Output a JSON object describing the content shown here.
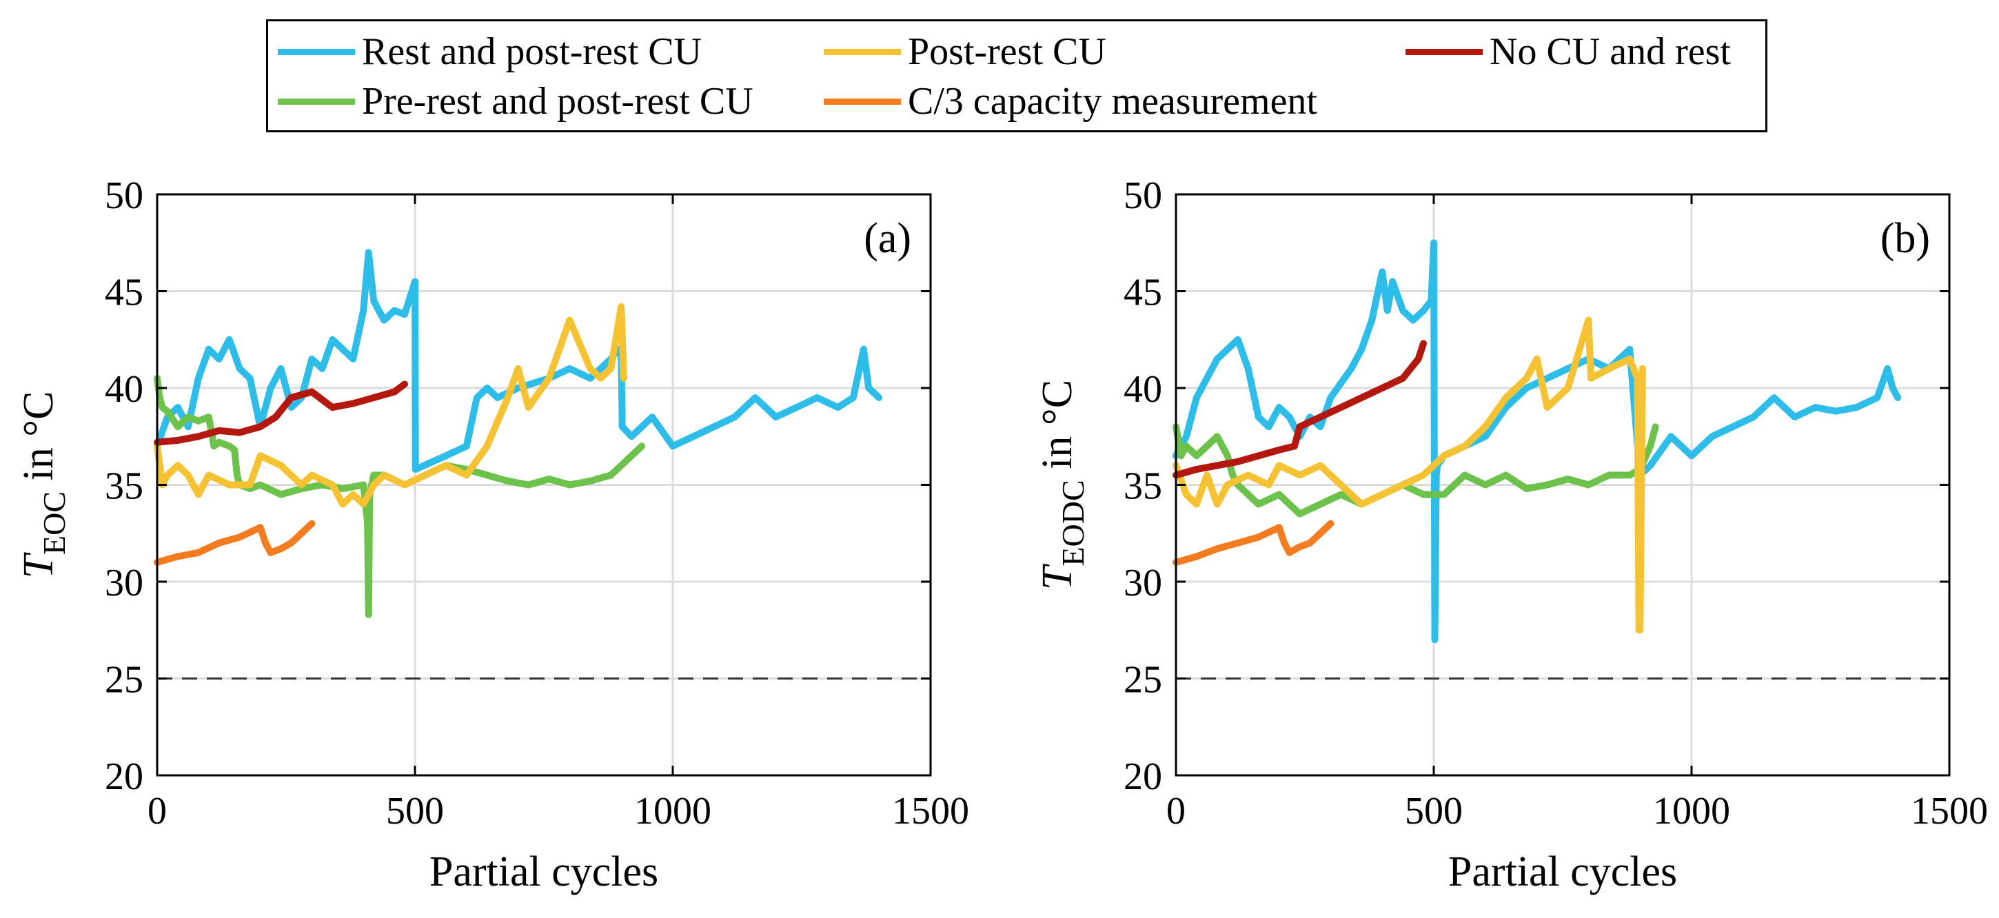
{
  "legend": {
    "items": [
      {
        "label": "Rest and post-rest CU",
        "color": "#2ebde9"
      },
      {
        "label": "Post-rest CU",
        "color": "#f5c233"
      },
      {
        "label": "No CU and rest",
        "color": "#b3170e"
      },
      {
        "label": "Pre-rest and post-rest CU",
        "color": "#6cc24a"
      },
      {
        "label": "C/3 capacity measurement",
        "color": "#f47c20"
      }
    ]
  },
  "chart_data": [
    {
      "type": "line",
      "panel_label": "(a)",
      "xlabel": "Partial cycles",
      "ylabel_main": "T",
      "ylabel_sub": "EOC",
      "ylabel_suffix": " in °C",
      "xlim": [
        0,
        1500
      ],
      "ylim": [
        20,
        50
      ],
      "xticks": [
        0,
        500,
        1000,
        1500
      ],
      "yticks": [
        20,
        25,
        30,
        35,
        40,
        45,
        50
      ],
      "grid": true,
      "reference_line": 25,
      "series": [
        {
          "name": "Rest and post-rest CU",
          "color": "#2ebde9",
          "x": [
            0,
            20,
            40,
            60,
            80,
            100,
            120,
            140,
            160,
            180,
            200,
            220,
            240,
            260,
            280,
            300,
            320,
            340,
            360,
            380,
            400,
            410,
            420,
            440,
            460,
            480,
            500,
            501,
            560,
            600,
            620,
            640,
            660,
            700,
            760,
            800,
            840,
            880,
            895,
            900,
            902,
            920,
            960,
            1000,
            1040,
            1080,
            1120,
            1160,
            1200,
            1240,
            1280,
            1320,
            1350,
            1370,
            1380,
            1400
          ],
          "y": [
            37.0,
            38.5,
            39.0,
            38.0,
            40.5,
            42.0,
            41.5,
            42.5,
            41.0,
            40.5,
            38.0,
            40.0,
            41.0,
            39.0,
            39.5,
            41.5,
            41.0,
            42.5,
            42.0,
            41.5,
            44.0,
            47.0,
            44.5,
            43.5,
            44.0,
            43.8,
            45.5,
            35.8,
            36.5,
            37.0,
            39.5,
            40.0,
            39.5,
            40.0,
            40.5,
            41.0,
            40.5,
            41.5,
            42.0,
            41.8,
            38.0,
            37.5,
            38.5,
            37.0,
            37.5,
            38.0,
            38.5,
            39.5,
            38.5,
            39.0,
            39.5,
            39.0,
            39.5,
            42.0,
            40.0,
            39.5
          ]
        },
        {
          "name": "Pre-rest and post-rest CU",
          "color": "#6cc24a",
          "x": [
            0,
            5,
            10,
            20,
            40,
            60,
            80,
            100,
            110,
            120,
            140,
            150,
            155,
            160,
            180,
            200,
            240,
            280,
            320,
            360,
            400,
            408,
            410,
            412,
            420,
            440,
            480,
            520,
            560,
            600,
            640,
            680,
            720,
            760,
            800,
            840,
            880,
            900,
            920,
            940
          ],
          "y": [
            40.5,
            39.5,
            39.0,
            38.8,
            38.0,
            38.5,
            38.3,
            38.5,
            37.0,
            37.2,
            37.0,
            36.8,
            35.5,
            35.0,
            34.8,
            35.0,
            34.5,
            34.8,
            35.0,
            34.8,
            35.0,
            33.0,
            28.3,
            34.5,
            35.5,
            35.5,
            35.0,
            35.5,
            36.0,
            35.8,
            35.5,
            35.2,
            35.0,
            35.3,
            35.0,
            35.2,
            35.5,
            36.0,
            36.5,
            37.0
          ]
        },
        {
          "name": "Post-rest CU",
          "color": "#f5c233",
          "x": [
            0,
            10,
            20,
            40,
            60,
            80,
            100,
            140,
            180,
            200,
            240,
            280,
            300,
            340,
            360,
            380,
            400,
            420,
            440,
            480,
            520,
            560,
            600,
            640,
            680,
            700,
            720,
            760,
            800,
            840,
            860,
            880,
            900,
            905
          ],
          "y": [
            37.0,
            35.0,
            35.5,
            36.0,
            35.5,
            34.5,
            35.5,
            35.0,
            35.0,
            36.5,
            36.0,
            35.0,
            35.5,
            35.0,
            34.0,
            34.5,
            34.0,
            35.0,
            35.5,
            35.0,
            35.5,
            36.0,
            35.5,
            37.0,
            39.5,
            41.0,
            39.0,
            40.5,
            43.5,
            41.0,
            40.5,
            41.0,
            44.2,
            40.5
          ]
        },
        {
          "name": "No CU and rest",
          "color": "#b3170e",
          "x": [
            0,
            40,
            80,
            120,
            160,
            200,
            230,
            260,
            300,
            340,
            380,
            420,
            460,
            480
          ],
          "y": [
            37.2,
            37.3,
            37.5,
            37.8,
            37.7,
            38.0,
            38.5,
            39.5,
            39.8,
            39.0,
            39.2,
            39.5,
            39.8,
            40.2
          ]
        },
        {
          "name": "C/3 capacity measurement",
          "color": "#f47c20",
          "x": [
            0,
            40,
            80,
            120,
            160,
            200,
            210,
            220,
            240,
            260,
            280,
            300
          ],
          "y": [
            31.0,
            31.3,
            31.5,
            32.0,
            32.3,
            32.8,
            32.0,
            31.5,
            31.7,
            32.0,
            32.5,
            33.0
          ]
        }
      ]
    },
    {
      "type": "line",
      "panel_label": "(b)",
      "xlabel": "Partial cycles",
      "ylabel_main": "T",
      "ylabel_sub": "EODC",
      "ylabel_suffix": " in °C",
      "xlim": [
        0,
        1500
      ],
      "ylim": [
        20,
        50
      ],
      "xticks": [
        0,
        500,
        1000,
        1500
      ],
      "yticks": [
        20,
        25,
        30,
        35,
        40,
        45,
        50
      ],
      "grid": true,
      "reference_line": 25,
      "series": [
        {
          "name": "Rest and post-rest CU",
          "color": "#2ebde9",
          "x": [
            0,
            20,
            40,
            60,
            80,
            100,
            120,
            140,
            160,
            180,
            200,
            220,
            240,
            260,
            280,
            300,
            340,
            360,
            380,
            400,
            410,
            420,
            440,
            460,
            480,
            495,
            500,
            502,
            505,
            507,
            520,
            560,
            600,
            640,
            680,
            720,
            760,
            800,
            840,
            880,
            900,
            920,
            960,
            1000,
            1040,
            1080,
            1120,
            1160,
            1200,
            1240,
            1280,
            1320,
            1360,
            1380,
            1390,
            1400
          ],
          "y": [
            36.5,
            37.5,
            39.5,
            40.5,
            41.5,
            42.0,
            42.5,
            41.0,
            38.5,
            38.0,
            39.0,
            38.5,
            37.5,
            38.5,
            38.0,
            39.5,
            41.0,
            42.0,
            43.5,
            46.0,
            44.0,
            45.5,
            44.0,
            43.5,
            44.0,
            44.5,
            47.5,
            27.0,
            35.5,
            36.0,
            36.5,
            37.0,
            37.5,
            39.0,
            40.0,
            40.5,
            41.0,
            41.5,
            41.0,
            42.0,
            35.5,
            36.0,
            37.5,
            36.5,
            37.5,
            38.0,
            38.5,
            39.5,
            38.5,
            39.0,
            38.8,
            39.0,
            39.5,
            41.0,
            40.0,
            39.5
          ]
        },
        {
          "name": "Pre-rest and post-rest CU",
          "color": "#6cc24a",
          "x": [
            0,
            10,
            20,
            40,
            60,
            80,
            100,
            110,
            120,
            140,
            160,
            200,
            240,
            280,
            320,
            360,
            400,
            440,
            480,
            520,
            560,
            600,
            640,
            680,
            720,
            760,
            800,
            840,
            880,
            900,
            920,
            930
          ],
          "y": [
            38.0,
            36.5,
            37.0,
            36.5,
            37.0,
            37.5,
            36.5,
            35.5,
            35.0,
            34.5,
            34.0,
            34.5,
            33.5,
            34.0,
            34.5,
            34.0,
            34.5,
            35.0,
            34.5,
            34.5,
            35.5,
            35.0,
            35.5,
            34.8,
            35.0,
            35.3,
            35.0,
            35.5,
            35.5,
            35.8,
            37.0,
            38.0
          ]
        },
        {
          "name": "Post-rest CU",
          "color": "#f5c233",
          "x": [
            0,
            20,
            40,
            60,
            80,
            100,
            140,
            180,
            200,
            240,
            280,
            320,
            360,
            400,
            440,
            480,
            520,
            560,
            600,
            640,
            680,
            700,
            720,
            760,
            800,
            805,
            840,
            880,
            895,
            898,
            900,
            905
          ],
          "y": [
            36.0,
            34.5,
            34.0,
            35.5,
            34.0,
            35.0,
            35.5,
            35.0,
            36.0,
            35.5,
            36.0,
            35.0,
            34.0,
            34.5,
            35.0,
            35.5,
            36.5,
            37.0,
            38.0,
            39.5,
            40.5,
            41.5,
            39.0,
            40.0,
            43.5,
            40.5,
            41.0,
            41.5,
            40.5,
            27.5,
            27.5,
            41.0
          ]
        },
        {
          "name": "No CU and rest",
          "color": "#b3170e",
          "x": [
            0,
            40,
            80,
            120,
            160,
            200,
            230,
            240,
            280,
            320,
            360,
            400,
            440,
            470,
            480
          ],
          "y": [
            35.5,
            35.8,
            36.0,
            36.2,
            36.5,
            36.8,
            37.0,
            38.0,
            38.5,
            39.0,
            39.5,
            40.0,
            40.5,
            41.5,
            42.3
          ]
        },
        {
          "name": "C/3 capacity measurement",
          "color": "#f47c20",
          "x": [
            0,
            40,
            80,
            120,
            160,
            200,
            210,
            220,
            240,
            260,
            280,
            300
          ],
          "y": [
            31.0,
            31.3,
            31.7,
            32.0,
            32.3,
            32.8,
            32.0,
            31.5,
            31.8,
            32.0,
            32.5,
            33.0
          ]
        }
      ]
    }
  ]
}
